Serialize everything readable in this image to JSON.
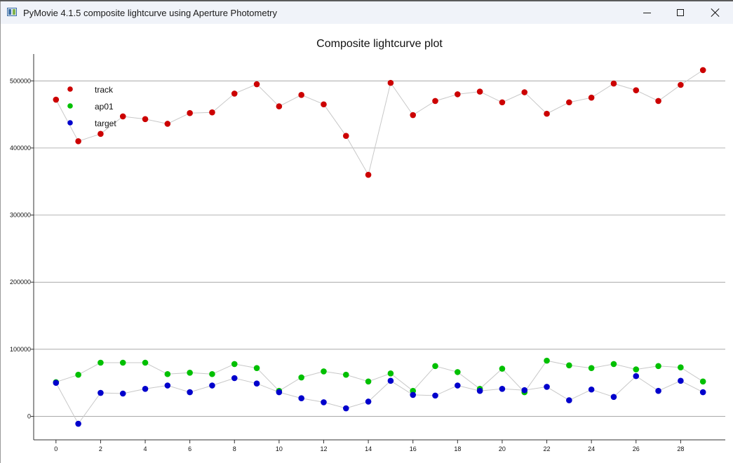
{
  "window": {
    "title": "PyMovie 4.1.5 composite lightcurve using Aperture Photometry"
  },
  "icons": [
    "app-icon",
    "minimize-icon",
    "maximize-icon",
    "close-icon"
  ],
  "chart_data": {
    "type": "scatter",
    "title": "Composite lightcurve plot",
    "xlabel": "",
    "ylabel": "",
    "xlim": [
      -1,
      30
    ],
    "ylim": [
      -35000,
      540000
    ],
    "grid": "horizontal",
    "legend_position": "top-left",
    "x_ticks": [
      0,
      2,
      4,
      6,
      8,
      10,
      12,
      14,
      16,
      18,
      20,
      22,
      24,
      26,
      28
    ],
    "y_ticks": [
      0,
      100000,
      200000,
      300000,
      400000,
      500000
    ],
    "x": [
      0,
      1,
      2,
      3,
      4,
      5,
      6,
      7,
      8,
      9,
      10,
      11,
      12,
      13,
      14,
      15,
      16,
      17,
      18,
      19,
      20,
      21,
      22,
      23,
      24,
      25,
      26,
      27,
      28,
      29
    ],
    "series": [
      {
        "name": "track",
        "color": "#cc0000",
        "values": [
          472000,
          410000,
          421000,
          447000,
          443000,
          436000,
          452000,
          453000,
          481000,
          495000,
          462000,
          479000,
          465000,
          418000,
          360000,
          497000,
          449000,
          470000,
          480000,
          484000,
          468000,
          483000,
          451000,
          468000,
          475000,
          496000,
          486000,
          470000,
          494000,
          516000
        ]
      },
      {
        "name": "ap01",
        "color": "#00c000",
        "values": [
          51000,
          62000,
          80000,
          80000,
          80000,
          63000,
          65000,
          63000,
          78000,
          72000,
          38000,
          58000,
          67000,
          62000,
          52000,
          64000,
          38000,
          75000,
          66000,
          41000,
          71000,
          36000,
          83000,
          76000,
          72000,
          78000,
          70000,
          75000,
          73000,
          52000
        ]
      },
      {
        "name": "target",
        "color": "#0000cc",
        "values": [
          50000,
          -11000,
          35000,
          34000,
          41000,
          46000,
          36000,
          46000,
          57000,
          49000,
          36000,
          27000,
          21000,
          12000,
          22000,
          53000,
          32000,
          31000,
          46000,
          38000,
          41000,
          39000,
          44000,
          24000,
          40000,
          29000,
          60000,
          38000,
          53000,
          36000
        ]
      }
    ]
  }
}
